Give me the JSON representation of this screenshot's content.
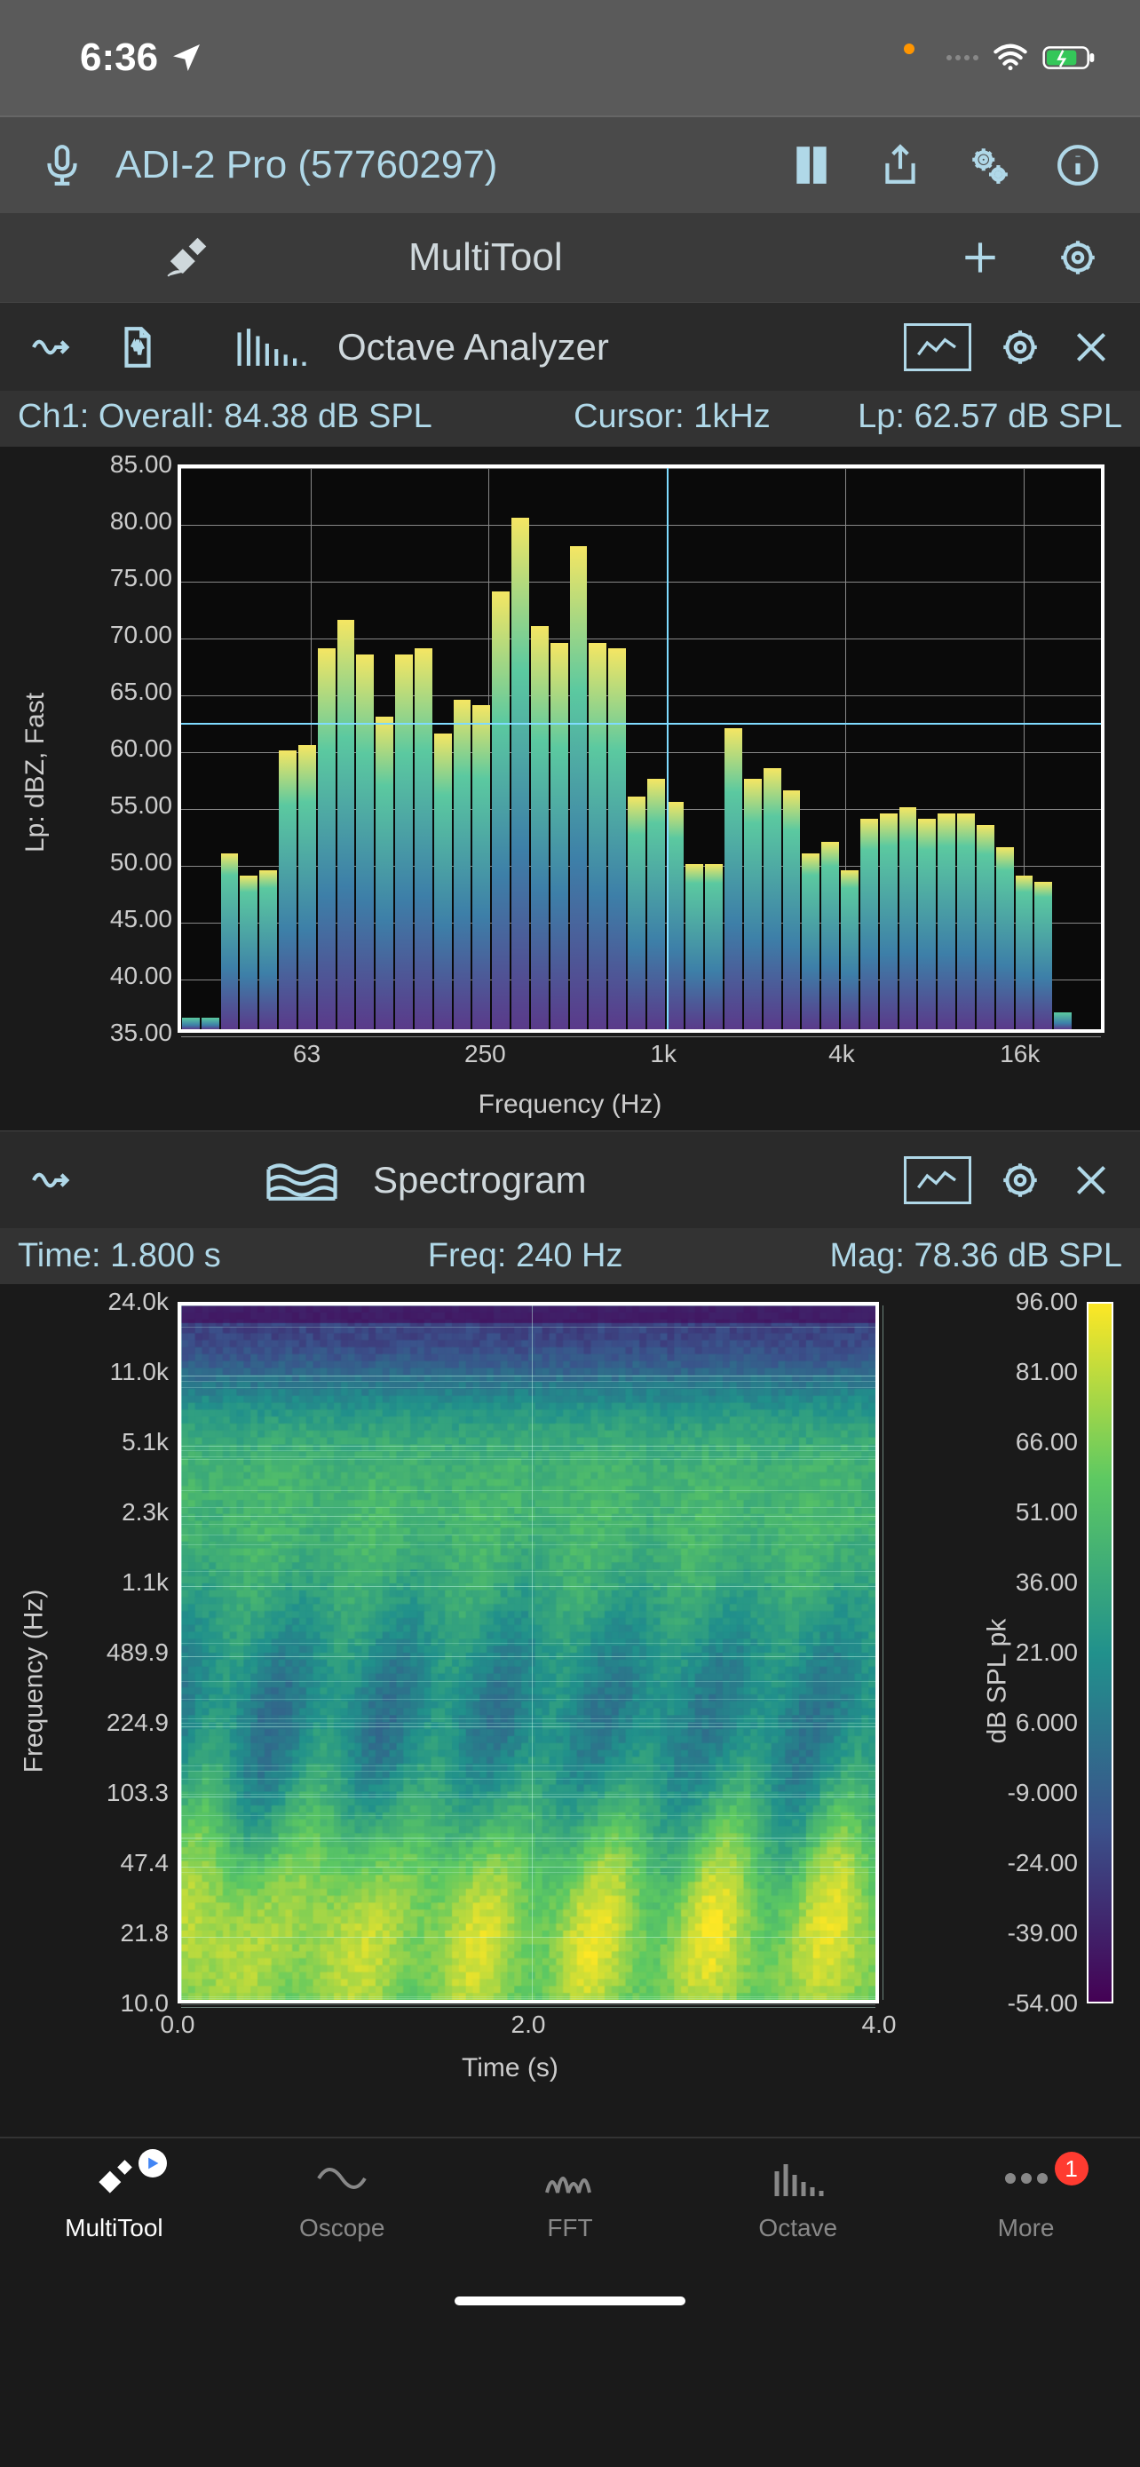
{
  "status": {
    "time": "6:36",
    "nav_icon": "location-arrow",
    "charging": true
  },
  "device": {
    "name": "ADI-2 Pro (57760297)",
    "state": "paused"
  },
  "multitool": {
    "label": "MultiTool"
  },
  "octave": {
    "title": "Octave Analyzer",
    "info_ch": "Ch1:  Overall: 84.38 dB SPL",
    "info_cursor": "Cursor: 1kHz",
    "info_lp": "Lp: 62.57 dB SPL",
    "ylabel": "Lp: dBZ, Fast",
    "xlabel": "Frequency (Hz)",
    "ymin": 35.0,
    "ymax": 85.0,
    "yticks": [
      "85.00",
      "80.00",
      "75.00",
      "70.00",
      "65.00",
      "60.00",
      "55.00",
      "50.00",
      "45.00",
      "40.00",
      "35.00"
    ],
    "xticks": [
      "63",
      "250",
      "1k",
      "4k",
      "16k"
    ],
    "xtick_positions": [
      0.145,
      0.345,
      0.545,
      0.745,
      0.945
    ],
    "cursor_x": 0.545,
    "cursor_y": 62.57,
    "bars": [
      36,
      36,
      50.5,
      48.5,
      49,
      59.5,
      60,
      68.5,
      71,
      68,
      62.5,
      68,
      68.5,
      61,
      64,
      63.5,
      73.5,
      80,
      70.5,
      69,
      77.5,
      69,
      68.5,
      55.5,
      57,
      55,
      49.5,
      49.5,
      61.5,
      57,
      58,
      56,
      50.5,
      51.5,
      49,
      53.5,
      54,
      54.5,
      53.5,
      54,
      54,
      53,
      51,
      48.5,
      48,
      36.5
    ],
    "bar_color_top": "#f5e663",
    "bar_color_upper": "#5bc9a0",
    "bar_color_mid": "#3d7fa8",
    "bar_color_bottom": "#5a3a8a",
    "grid_color": "#888888",
    "background": "#0a0a0a"
  },
  "spectro": {
    "title": "Spectrogram",
    "info_time": "Time: 1.800 s",
    "info_freq": "Freq: 240 Hz",
    "info_mag": "Mag: 78.36 dB SPL",
    "ylabel": "Frequency (Hz)",
    "xlabel": "Time (s)",
    "colorbar_label": "dB SPL pk",
    "yticks": [
      "24.0k",
      "11.0k",
      "5.1k",
      "2.3k",
      "1.1k",
      "489.9",
      "224.9",
      "103.3",
      "47.4",
      "21.8",
      "10.0"
    ],
    "xticks": [
      "0.0",
      "2.0",
      "4.0"
    ],
    "cticks": [
      "96.00",
      "81.00",
      "66.00",
      "51.00",
      "36.00",
      "21.00",
      "6.000",
      "-9.000",
      "-24.00",
      "-39.00",
      "-54.00"
    ],
    "colormap_stops": [
      "#440154",
      "#3b528b",
      "#21918c",
      "#5ec962",
      "#fde725"
    ],
    "background": "#0a0a0a"
  },
  "tabs": {
    "items": [
      {
        "label": "MultiTool",
        "icon": "multitool",
        "active": true,
        "play_badge": true
      },
      {
        "label": "Oscope",
        "icon": "sine",
        "active": false
      },
      {
        "label": "FFT",
        "icon": "fft",
        "active": false
      },
      {
        "label": "Octave",
        "icon": "bars",
        "active": false
      },
      {
        "label": "More",
        "icon": "dots",
        "active": false,
        "badge": "1"
      }
    ]
  },
  "colors": {
    "accent": "#b0d8e8",
    "bg_dark": "#1a1a1a",
    "bg_bar": "#3a3a3a"
  }
}
